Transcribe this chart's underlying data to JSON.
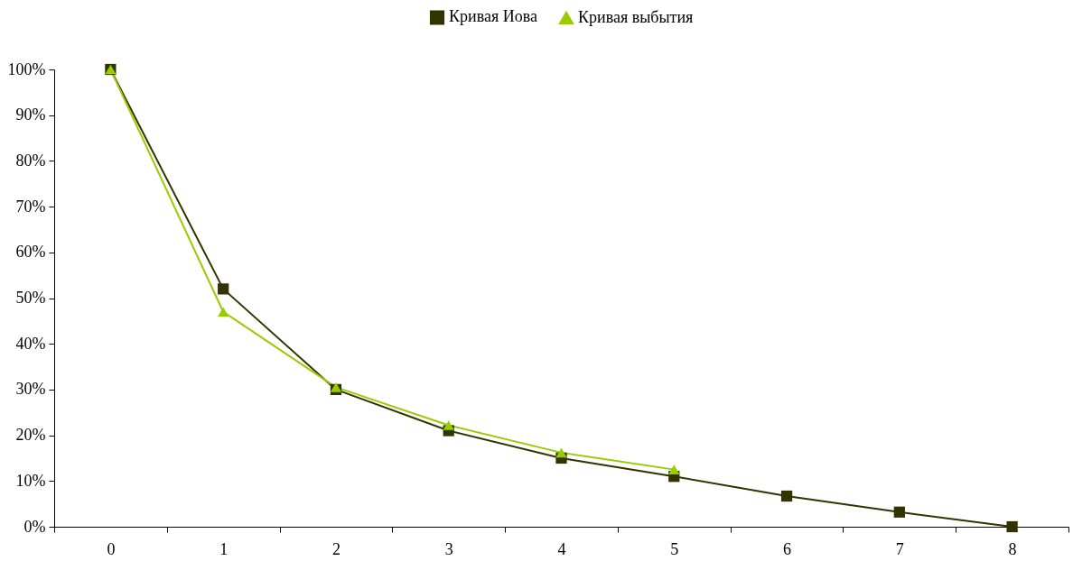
{
  "chart_data": {
    "type": "line",
    "categories": [
      "0",
      "1",
      "2",
      "3",
      "4",
      "5",
      "6",
      "7",
      "8"
    ],
    "series": [
      {
        "name": "Кривая Иова",
        "color": "#333300",
        "marker": "square",
        "values": [
          100,
          52,
          30,
          21,
          15,
          11,
          6.7,
          3.2,
          0
        ]
      },
      {
        "name": "Кривая выбытия",
        "color": "#99cc00",
        "marker": "triangle",
        "values": [
          100,
          47,
          30.5,
          22.2,
          16.2,
          12.5,
          null,
          null,
          null
        ]
      }
    ],
    "ylim": [
      0,
      100
    ],
    "yticks": [
      {
        "value": 0,
        "label": "0%"
      },
      {
        "value": 10,
        "label": "10%"
      },
      {
        "value": 20,
        "label": "20%"
      },
      {
        "value": 30,
        "label": "30%"
      },
      {
        "value": 40,
        "label": "40%"
      },
      {
        "value": 50,
        "label": "50%"
      },
      {
        "value": 60,
        "label": "60%"
      },
      {
        "value": 70,
        "label": "70%"
      },
      {
        "value": 80,
        "label": "80%"
      },
      {
        "value": 90,
        "label": "90%"
      },
      {
        "value": 100,
        "label": "100%"
      }
    ],
    "grid": false,
    "legend": "top",
    "line_style": "solid"
  }
}
